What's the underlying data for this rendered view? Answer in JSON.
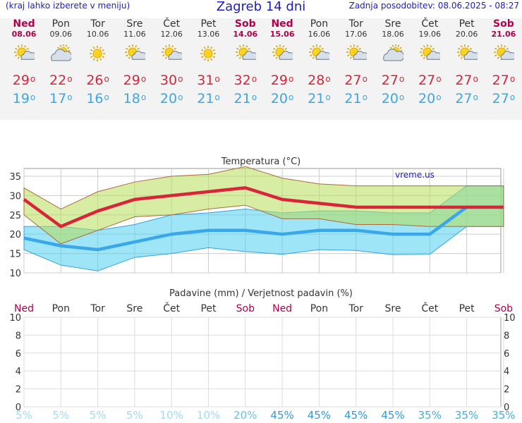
{
  "header": {
    "menu_hint": "(kraj lahko izberete v meniju)",
    "title": "Zagreb 14 dni",
    "updated": "Zadnja posodobitev: 08.06.2025 - 08:27"
  },
  "colors": {
    "max": "#d8253a",
    "min": "#3aa7ea",
    "weekend": "#b0004a"
  },
  "days": [
    {
      "name": "Ned",
      "date": "08.06",
      "weekend": true,
      "icon": "sun-cloud-icon",
      "tmax": "29",
      "tmin": "19"
    },
    {
      "name": "Pon",
      "date": "09.06",
      "weekend": false,
      "icon": "cloud-sun-icon",
      "tmax": "22",
      "tmin": "17"
    },
    {
      "name": "Tor",
      "date": "10.06",
      "weekend": false,
      "icon": "sun-icon",
      "tmax": "26",
      "tmin": "16"
    },
    {
      "name": "Sre",
      "date": "11.06",
      "weekend": false,
      "icon": "sun-cloud-icon",
      "tmax": "29",
      "tmin": "18"
    },
    {
      "name": "Čet",
      "date": "12.06",
      "weekend": false,
      "icon": "sun-cloud-icon",
      "tmax": "30",
      "tmin": "20"
    },
    {
      "name": "Pet",
      "date": "13.06",
      "weekend": false,
      "icon": "sun-icon",
      "tmax": "31",
      "tmin": "21"
    },
    {
      "name": "Sob",
      "date": "14.06",
      "weekend": true,
      "icon": "sun-cloud-icon",
      "tmax": "32",
      "tmin": "21"
    },
    {
      "name": "Ned",
      "date": "15.06",
      "weekend": true,
      "icon": "sun-cloud-icon",
      "tmax": "29",
      "tmin": "20"
    },
    {
      "name": "Pon",
      "date": "16.06",
      "weekend": false,
      "icon": "sun-cloud-icon",
      "tmax": "28",
      "tmin": "21"
    },
    {
      "name": "Tor",
      "date": "17.06",
      "weekend": false,
      "icon": "sun-cloud-icon",
      "tmax": "27",
      "tmin": "21"
    },
    {
      "name": "Sre",
      "date": "18.06",
      "weekend": false,
      "icon": "cloud-sun-icon",
      "tmax": "27",
      "tmin": "20"
    },
    {
      "name": "Čet",
      "date": "19.06",
      "weekend": false,
      "icon": "sun-cloud-icon",
      "tmax": "27",
      "tmin": "20"
    },
    {
      "name": "Pet",
      "date": "20.06",
      "weekend": false,
      "icon": "sun-cloud-icon",
      "tmax": "27",
      "tmin": "27"
    },
    {
      "name": "Sob",
      "date": "21.06",
      "weekend": true,
      "icon": "sun-cloud-icon",
      "tmax": "27",
      "tmin": "27"
    }
  ],
  "degree_symbol": "o",
  "chart_data": [
    {
      "type": "line",
      "title": "Temperatura (°C)",
      "watermark": "vreme.us",
      "ylim": [
        10,
        37
      ],
      "yticks": [
        10,
        15,
        20,
        25,
        30,
        35
      ],
      "grid": true,
      "series": [
        {
          "name": "max",
          "values": [
            29,
            22,
            26,
            29,
            30,
            31,
            32,
            29,
            28,
            27,
            27,
            27,
            27,
            27
          ]
        },
        {
          "name": "min",
          "values": [
            19,
            17,
            16,
            18,
            20,
            21,
            21,
            20,
            21,
            21,
            20,
            20,
            27,
            27
          ]
        }
      ],
      "max_band_upper": [
        32,
        26.5,
        31,
        33.5,
        35,
        35.5,
        37.5,
        34.5,
        33,
        32.5,
        32.5,
        32.5,
        32.5,
        32.5
      ],
      "max_band_lower": [
        25,
        17.5,
        21,
        24.5,
        25,
        26.5,
        27.5,
        24,
        24,
        22.5,
        22.5,
        22,
        22,
        22
      ],
      "min_band_upper": [
        22,
        22,
        21,
        22.5,
        25,
        25.5,
        26.5,
        25.5,
        26,
        26,
        25.5,
        25.5,
        32.5,
        32.5
      ],
      "min_band_lower": [
        16,
        12,
        10.5,
        14,
        15,
        16.5,
        15.5,
        14.8,
        16,
        15.8,
        14.7,
        14.8,
        22,
        22
      ]
    },
    {
      "type": "bar",
      "title": "Padavine (mm) / Verjetnost padavin (%)",
      "ylim": [
        0,
        10
      ],
      "yticks": [
        0,
        2,
        4,
        6,
        8,
        10
      ],
      "grid": true,
      "categories": [
        "Ned",
        "Pon",
        "Tor",
        "Sre",
        "Čet",
        "Pet",
        "Sob",
        "Ned",
        "Pon",
        "Tor",
        "Sre",
        "Čet",
        "Pet",
        "Sob"
      ],
      "values": [
        0,
        0,
        0,
        0,
        0,
        0,
        0,
        0,
        0,
        0,
        0,
        0,
        0,
        0
      ],
      "probability": [
        "5%",
        "5%",
        "5%",
        "5%",
        "10%",
        "10%",
        "20%",
        "45%",
        "45%",
        "45%",
        "45%",
        "35%",
        "35%",
        "35%"
      ]
    }
  ]
}
